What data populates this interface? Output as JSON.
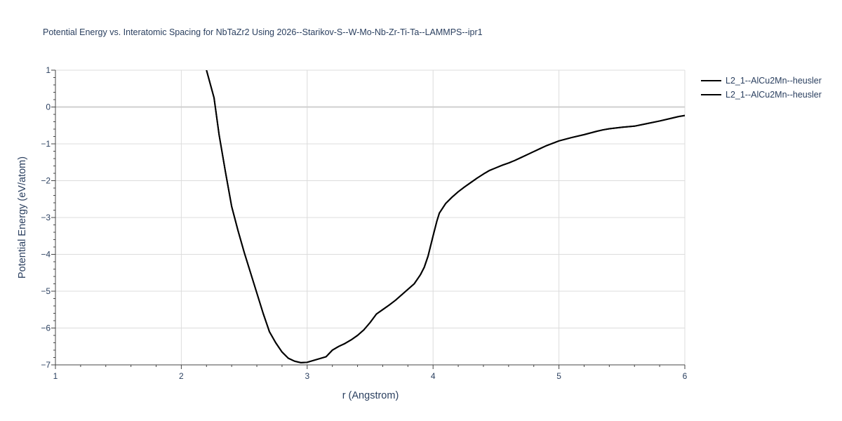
{
  "chart_data": {
    "type": "line",
    "title": "Potential Energy vs. Interatomic Spacing for NbTaZr2 Using 2026--Starikov-S--W-Mo-Nb-Zr-Ti-Ta--LAMMPS--ipr1",
    "xlabel": "r (Angstrom)",
    "ylabel": "Potential Energy (eV/atom)",
    "xlim": [
      1,
      6
    ],
    "ylim": [
      -7,
      1
    ],
    "xticks": [
      1,
      2,
      3,
      4,
      5,
      6
    ],
    "xtick_labels": [
      "1",
      "2",
      "3",
      "4",
      "5",
      "6"
    ],
    "yticks": [
      1,
      0,
      -1,
      -2,
      -3,
      -4,
      -5,
      -6,
      -7
    ],
    "ytick_labels": [
      "1",
      "0",
      "−1",
      "−2",
      "−3",
      "−4",
      "−5",
      "−6",
      "−7"
    ],
    "grid": true,
    "legend_position": "top-right",
    "series": [
      {
        "name": "L2_1--AlCu2Mn--heusler",
        "color": "#000000",
        "x": [
          2.2,
          2.26,
          2.3,
          2.35,
          2.4,
          2.45,
          2.5,
          2.55,
          2.6,
          2.65,
          2.7,
          2.75,
          2.8,
          2.85,
          2.9,
          2.95,
          3.0,
          3.05,
          3.1,
          3.15,
          3.2,
          3.25,
          3.3,
          3.35,
          3.4,
          3.45,
          3.5,
          3.55,
          3.6,
          3.65,
          3.7,
          3.75,
          3.8,
          3.85,
          3.88,
          3.9,
          3.93,
          3.96,
          4.0,
          4.03,
          4.05,
          4.1,
          4.15,
          4.2,
          4.25,
          4.3,
          4.35,
          4.4,
          4.45,
          4.5,
          4.55,
          4.6,
          4.65,
          4.7,
          4.75,
          4.8,
          4.85,
          4.9,
          5.0,
          5.1,
          5.2,
          5.3,
          5.35,
          5.4,
          5.5,
          5.6,
          5.7,
          5.8,
          5.9,
          5.95,
          6.0
        ],
        "y": [
          1.0,
          0.25,
          -0.75,
          -1.75,
          -2.7,
          -3.35,
          -3.95,
          -4.5,
          -5.05,
          -5.6,
          -6.1,
          -6.4,
          -6.65,
          -6.82,
          -6.9,
          -6.94,
          -6.93,
          -6.88,
          -6.83,
          -6.78,
          -6.6,
          -6.5,
          -6.42,
          -6.32,
          -6.2,
          -6.05,
          -5.85,
          -5.62,
          -5.5,
          -5.38,
          -5.25,
          -5.1,
          -4.95,
          -4.8,
          -4.65,
          -4.55,
          -4.35,
          -4.05,
          -3.5,
          -3.1,
          -2.88,
          -2.62,
          -2.45,
          -2.3,
          -2.17,
          -2.05,
          -1.93,
          -1.82,
          -1.72,
          -1.65,
          -1.58,
          -1.52,
          -1.45,
          -1.37,
          -1.29,
          -1.21,
          -1.13,
          -1.05,
          -0.92,
          -0.83,
          -0.75,
          -0.66,
          -0.62,
          -0.59,
          -0.55,
          -0.52,
          -0.45,
          -0.38,
          -0.3,
          -0.26,
          -0.23
        ]
      },
      {
        "name": "L2_1--AlCu2Mn--heusler",
        "color": "#000000",
        "x": [
          2.2,
          2.26,
          2.3,
          2.35,
          2.4,
          2.45,
          2.5,
          2.55,
          2.6,
          2.65,
          2.7,
          2.75,
          2.8,
          2.85,
          2.9,
          2.95,
          3.0,
          3.05,
          3.1,
          3.15,
          3.2,
          3.25,
          3.3,
          3.35,
          3.4,
          3.45,
          3.5,
          3.55,
          3.6,
          3.65,
          3.7,
          3.75,
          3.8,
          3.85,
          3.88,
          3.9,
          3.93,
          3.96,
          4.0,
          4.03,
          4.05,
          4.1,
          4.15,
          4.2,
          4.25,
          4.3,
          4.35,
          4.4,
          4.45,
          4.5,
          4.55,
          4.6,
          4.65,
          4.7,
          4.75,
          4.8,
          4.85,
          4.9,
          5.0,
          5.1,
          5.2,
          5.3,
          5.35,
          5.4,
          5.5,
          5.6,
          5.7,
          5.8,
          5.9,
          5.95,
          6.0
        ],
        "y": [
          1.0,
          0.25,
          -0.75,
          -1.75,
          -2.7,
          -3.35,
          -3.95,
          -4.5,
          -5.05,
          -5.6,
          -6.1,
          -6.4,
          -6.65,
          -6.82,
          -6.9,
          -6.94,
          -6.93,
          -6.88,
          -6.83,
          -6.78,
          -6.6,
          -6.5,
          -6.42,
          -6.32,
          -6.2,
          -6.05,
          -5.85,
          -5.62,
          -5.5,
          -5.38,
          -5.25,
          -5.1,
          -4.95,
          -4.8,
          -4.65,
          -4.55,
          -4.35,
          -4.05,
          -3.5,
          -3.1,
          -2.88,
          -2.62,
          -2.45,
          -2.3,
          -2.17,
          -2.05,
          -1.93,
          -1.82,
          -1.72,
          -1.65,
          -1.58,
          -1.52,
          -1.45,
          -1.37,
          -1.29,
          -1.21,
          -1.13,
          -1.05,
          -0.92,
          -0.83,
          -0.75,
          -0.66,
          -0.62,
          -0.59,
          -0.55,
          -0.52,
          -0.45,
          -0.38,
          -0.3,
          -0.26,
          -0.23
        ]
      }
    ]
  }
}
